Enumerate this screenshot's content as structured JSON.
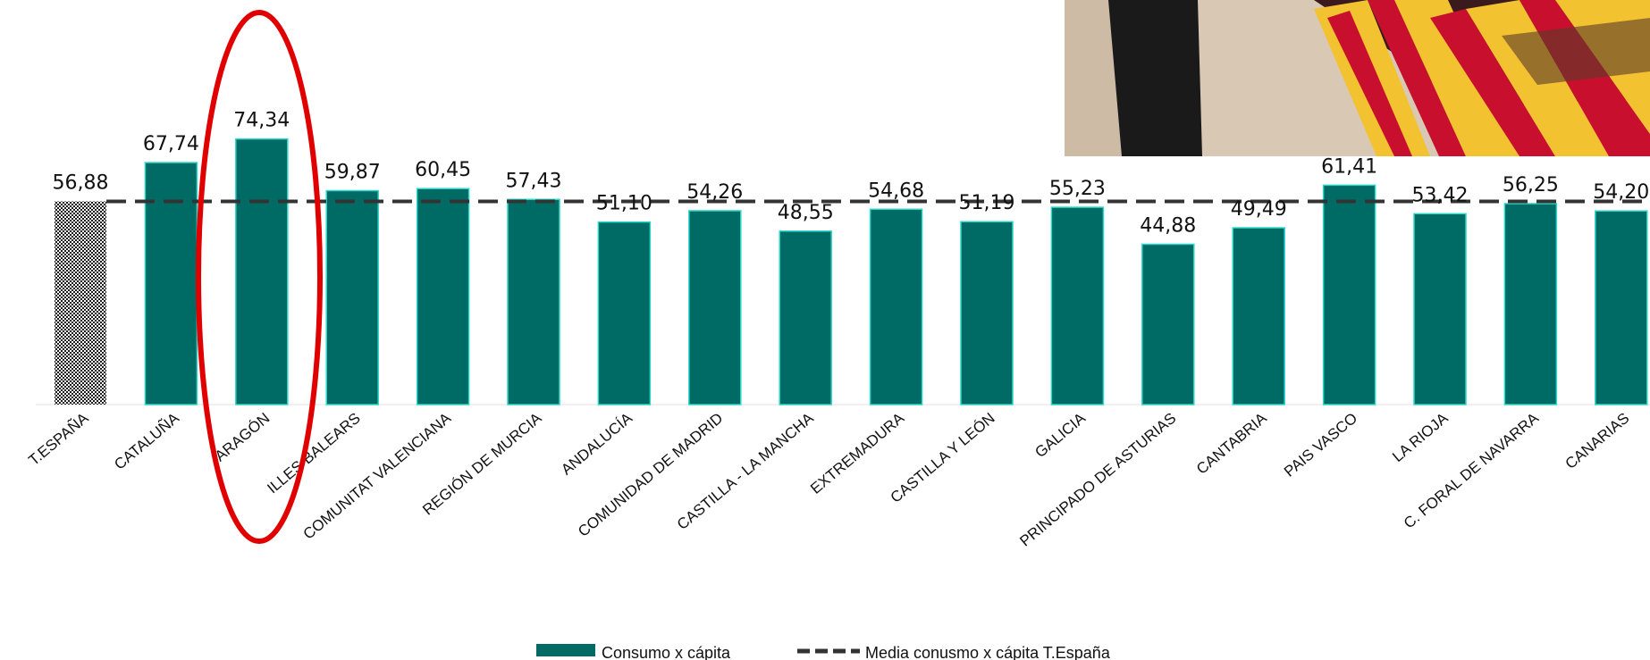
{
  "chart_data": {
    "type": "bar",
    "categories": [
      "T.ESPAÑA",
      "CATALUÑA",
      "ARAGÓN",
      "ILLES BALEARS",
      "COMUNITAT VALENCIANA",
      "REGIÓN DE MURCIA",
      "ANDALUCÍA",
      "COMUNIDAD DE MADRID",
      "CASTILLA - LA MANCHA",
      "EXTREMADURA",
      "CASTILLA Y LEÓN",
      "GALICIA",
      "PRINCIPADO DE ASTURIAS",
      "CANTABRIA",
      "PAIS VASCO",
      "LA RIOJA",
      "C. FORAL DE NAVARRA",
      "CANARIAS"
    ],
    "series": [
      {
        "name": "Consumo x cápita",
        "values": [
          56.88,
          67.74,
          74.34,
          59.87,
          60.45,
          57.43,
          51.1,
          54.26,
          48.55,
          54.68,
          51.19,
          55.23,
          44.88,
          49.49,
          61.41,
          53.42,
          56.25,
          54.2
        ],
        "value_labels": [
          "56,88",
          "67,74",
          "74,34",
          "59,87",
          "60,45",
          "57,43",
          "51,10",
          "54,26",
          "48,55",
          "54,68",
          "51,19",
          "55,23",
          "44,88",
          "49,49",
          "61,41",
          "53,42",
          "56,25",
          "54,20"
        ]
      },
      {
        "name": "Media conusmo x cápita T.España",
        "type": "line",
        "value": 56.88
      }
    ],
    "highlighted_category": "ARAGÓN",
    "ylim": [
      0,
      80
    ],
    "grid": false,
    "legend_position": "bottom-center",
    "colors": {
      "bar": "#006B65",
      "bar_edge": "#2ED6C9",
      "total_bar_pattern": "#1a1a1a",
      "average_line": "#333333",
      "highlight_ellipse": "#E00000"
    }
  },
  "photo": {
    "description_icon": "flag-photo",
    "colors": {
      "flag_red": "#C8102E",
      "flag_yellow": "#F2C230",
      "background": "#D8C8B4"
    }
  }
}
